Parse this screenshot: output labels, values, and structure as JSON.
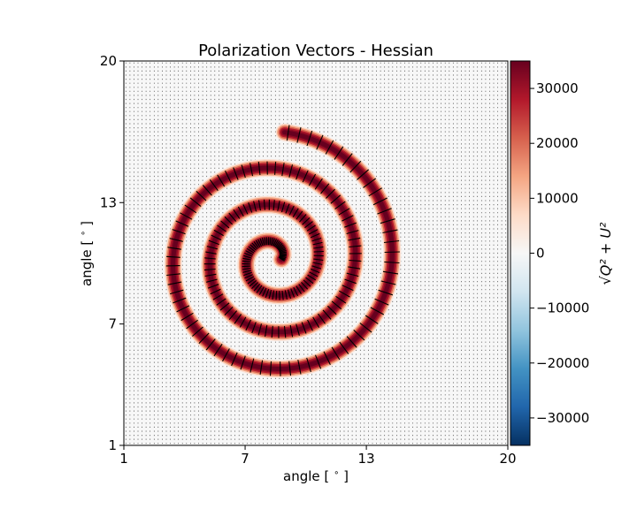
{
  "chart_data": {
    "type": "heatmap",
    "title": "Polarization Vectors - Hessian",
    "xlabel": "angle [$^\\circ$]",
    "ylabel": "angle [$^\\circ$]",
    "xlim": [
      1,
      20
    ],
    "ylim": [
      1,
      20
    ],
    "xticks": [
      "1",
      "7",
      "13",
      "20"
    ],
    "yticks": [
      "1",
      "7",
      "13",
      "20"
    ],
    "colorbar": {
      "label": "√Q² + U²",
      "range": [
        -35000,
        35000
      ],
      "ticks": [
        "−30000",
        "−20000",
        "−10000",
        "0",
        "10000",
        "20000",
        "30000"
      ],
      "cmap": "RdBu_r",
      "colors": [
        "#053061",
        "#2166ac",
        "#4393c3",
        "#92c5de",
        "#d1e5f0",
        "#f7f7f7",
        "#fddbc7",
        "#f4a582",
        "#d6604d",
        "#b2182b",
        "#67001f"
      ]
    },
    "spiral": {
      "center": [
        8.4,
        10.2
      ],
      "start_angle_deg": 0,
      "end_angle_deg": 1165,
      "start_radius": 0.4,
      "end_radius": 6.3,
      "peak_intensity": 35000
    },
    "vectors": {
      "grid_step": 0.2,
      "color": "#000000"
    }
  }
}
